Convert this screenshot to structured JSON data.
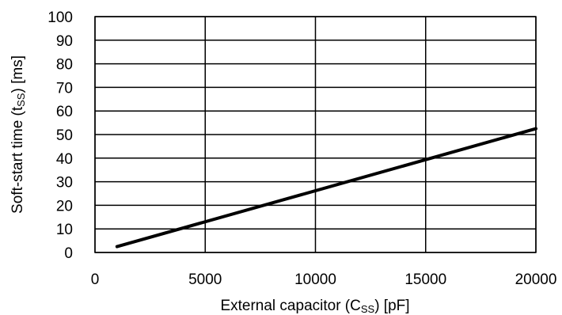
{
  "chart_data": {
    "type": "line",
    "xlabel": {
      "prefix": "External capacitor (C",
      "sub": "SS",
      "suffix": ") [pF]"
    },
    "ylabel": {
      "prefix": "Soft-start time (t",
      "sub": "SS",
      "suffix": ") [ms]"
    },
    "xlim": [
      0,
      20000
    ],
    "ylim": [
      0,
      100
    ],
    "x_ticks": [
      "0",
      "5000",
      "10000",
      "15000",
      "20000"
    ],
    "y_ticks": [
      "0",
      "10",
      "20",
      "30",
      "40",
      "50",
      "60",
      "70",
      "80",
      "90",
      "100"
    ],
    "grid": true,
    "series": [
      {
        "x": [
          1000,
          20000
        ],
        "y": [
          2.5,
          52.5
        ],
        "color": "#000000"
      }
    ]
  }
}
